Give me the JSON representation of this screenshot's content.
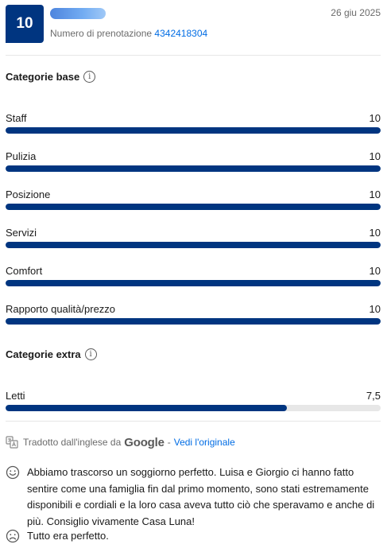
{
  "header": {
    "score": "10",
    "reviewer_name": "",
    "date": "26 giu 2025",
    "booking_label": "Numero di prenotazione",
    "booking_number": "4342418304"
  },
  "base_categories": {
    "title": "Categorie base",
    "items": [
      {
        "label": "Staff",
        "value": "10",
        "fraction": 1.0
      },
      {
        "label": "Pulizia",
        "value": "10",
        "fraction": 1.0
      },
      {
        "label": "Posizione",
        "value": "10",
        "fraction": 1.0
      },
      {
        "label": "Servizi",
        "value": "10",
        "fraction": 1.0
      },
      {
        "label": "Comfort",
        "value": "10",
        "fraction": 1.0
      },
      {
        "label": "Rapporto qualità/prezzo",
        "value": "10",
        "fraction": 1.0
      }
    ]
  },
  "extra_categories": {
    "title": "Categorie extra",
    "items": [
      {
        "label": "Letti",
        "value": "7,5",
        "fraction": 0.75
      }
    ]
  },
  "translation": {
    "text": "Tradotto dall'inglese da",
    "provider": "Google",
    "separator": "-",
    "link": "Vedi l'originale"
  },
  "review": {
    "positive_icon": "smiling-face-icon",
    "positive": "Abbiamo trascorso un soggiorno perfetto. Luisa e Giorgio ci hanno fatto sentire come una famiglia fin dal primo momento, sono stati estremamente disponibili e cordiali e la loro casa aveva tutto ciò che speravamo e anche di più. Consiglio vivamente Casa Luna!",
    "negative_icon": "sad-face-icon",
    "negative": "Tutto era perfetto."
  },
  "colors": {
    "brand": "#003580",
    "link": "#006ce4",
    "bar_track": "#e7e7e7"
  }
}
